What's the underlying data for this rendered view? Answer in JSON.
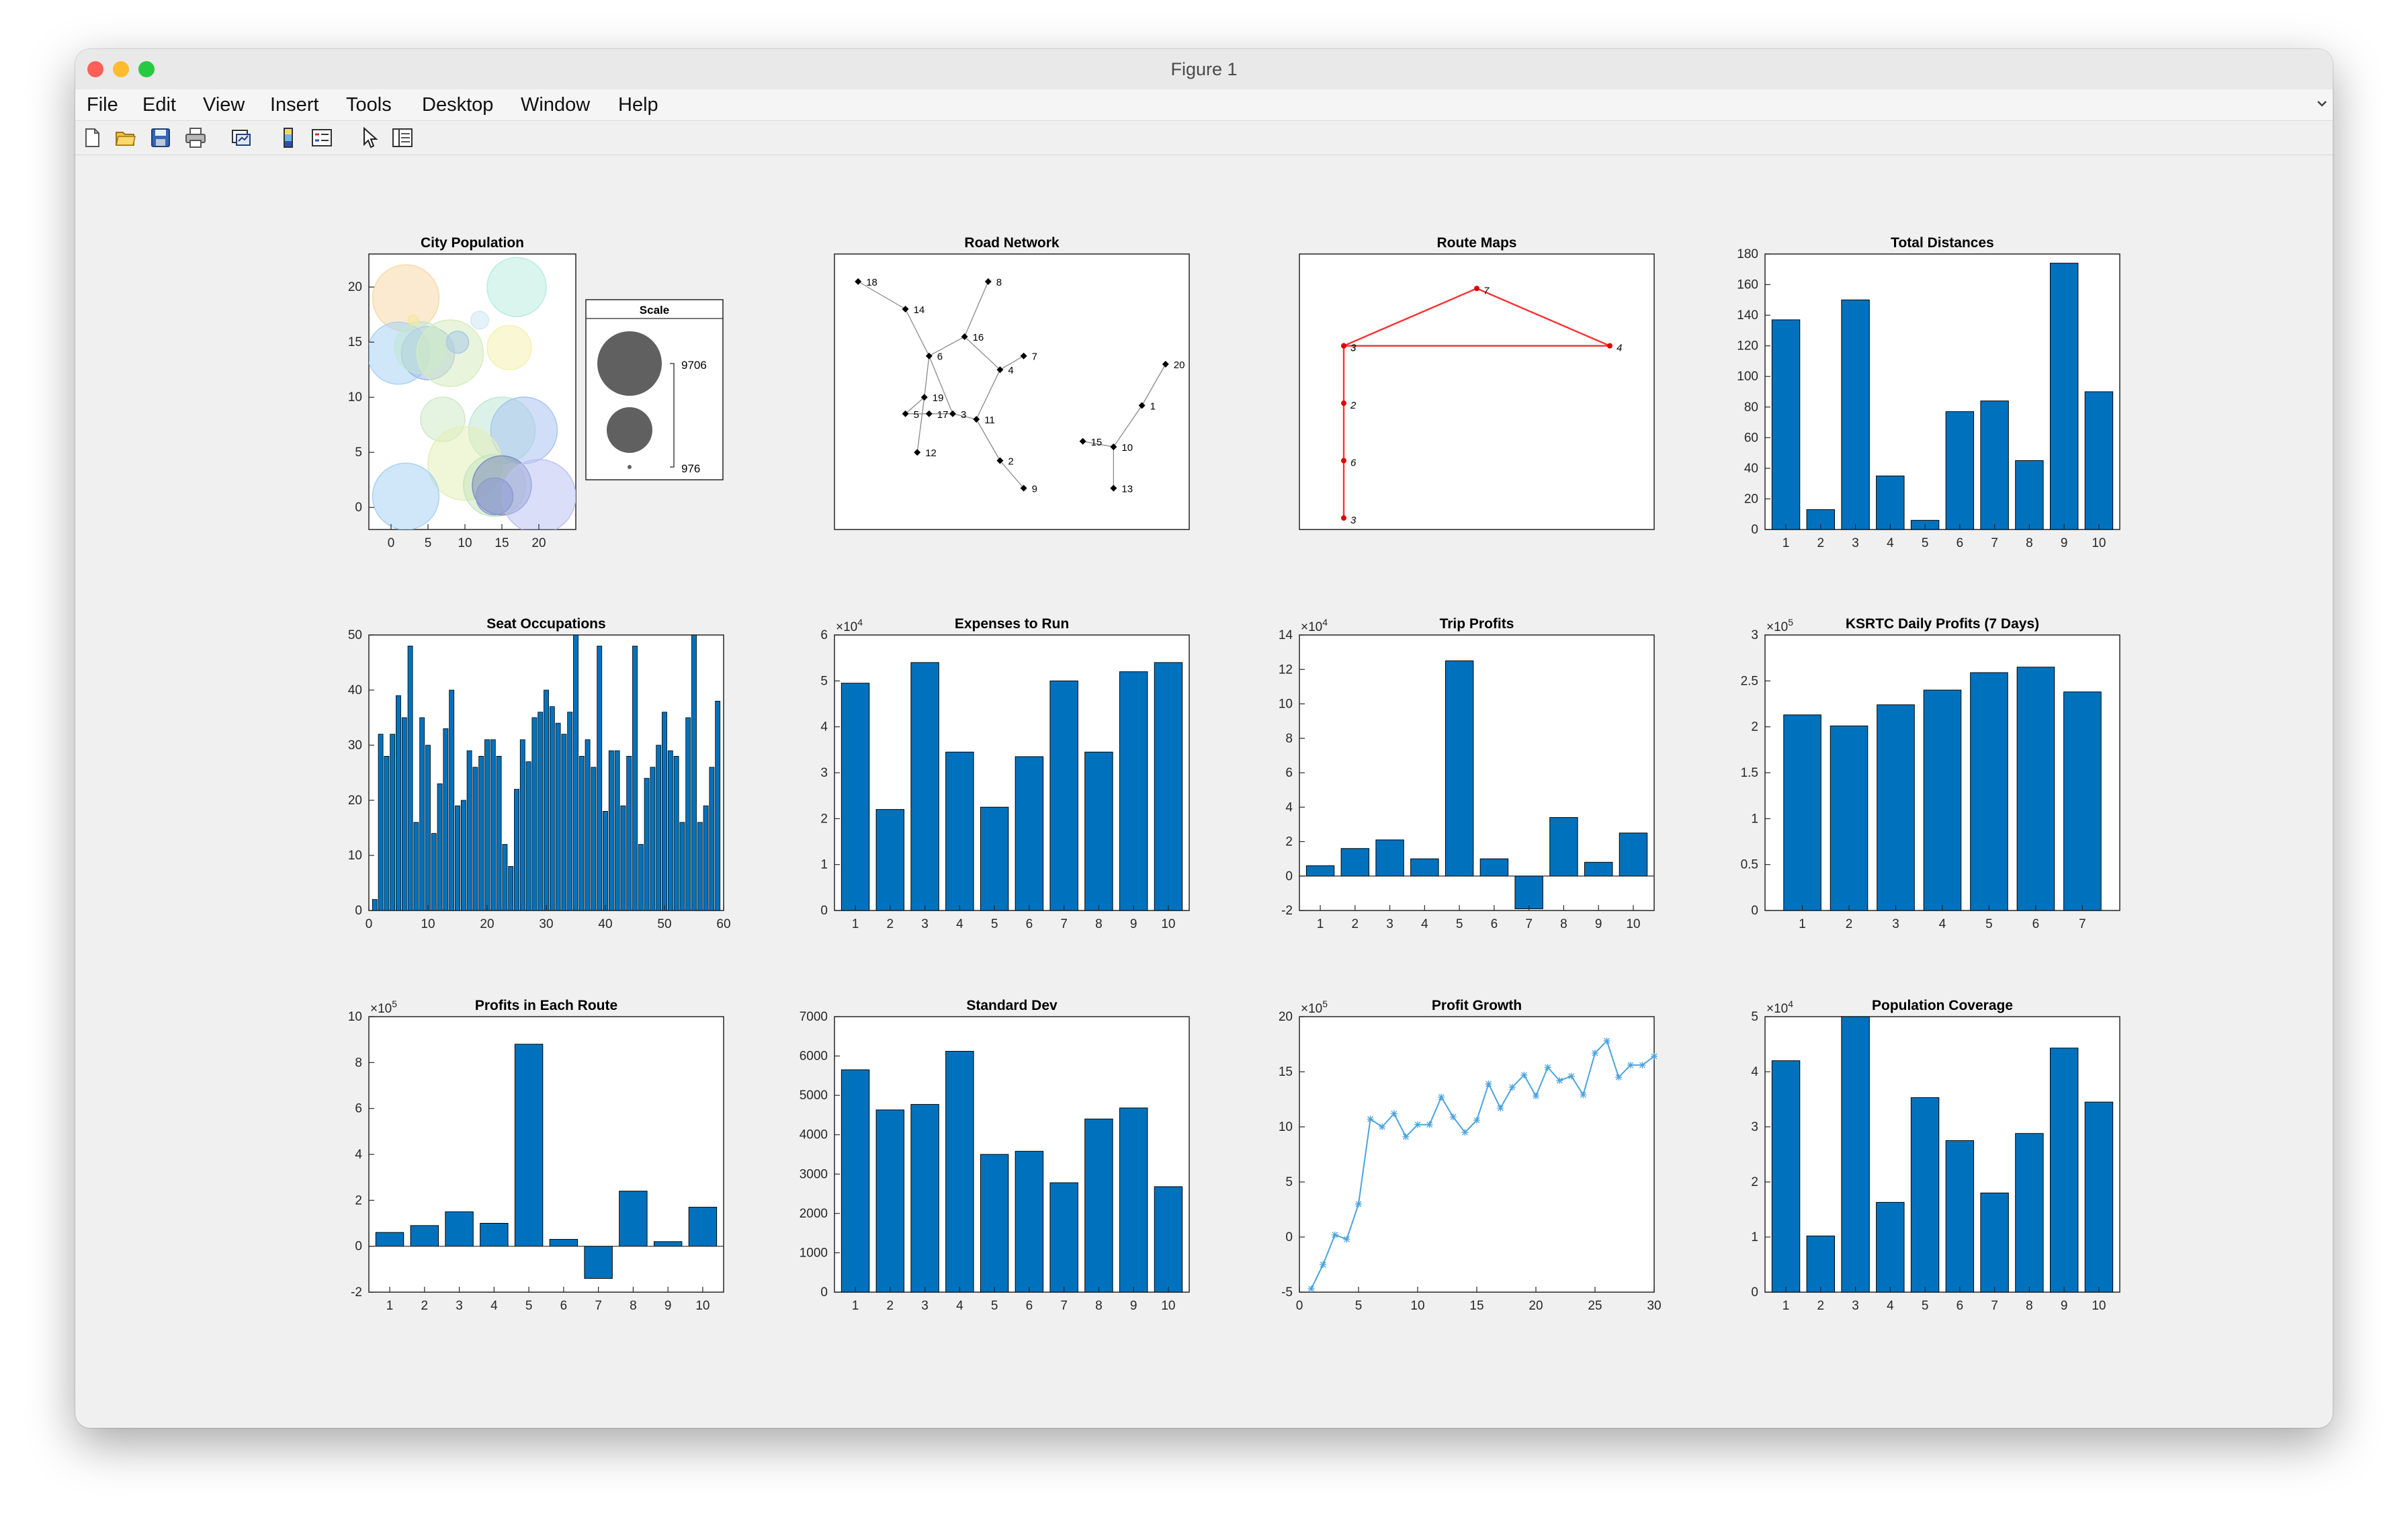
{
  "window": {
    "title": "Figure 1"
  },
  "menu": [
    "File",
    "Edit",
    "View",
    "Insert",
    "Tools",
    "Desktop",
    "Window",
    "Help"
  ],
  "toolbar_icons": [
    "new-figure-icon",
    "open-file-icon",
    "save-icon",
    "print-icon",
    "link-plot-icon",
    "insert-colorbar-icon",
    "insert-legend-icon",
    "edit-plot-pointer-icon",
    "property-inspector-icon"
  ],
  "chart_data": [
    {
      "type": "scatter",
      "title": "City Population",
      "xlim": [
        -3,
        25
      ],
      "ylim": [
        -2,
        23
      ],
      "xticks": [
        0,
        5,
        10,
        15,
        20
      ],
      "yticks": [
        0,
        5,
        10,
        15,
        20
      ],
      "bubbles": [
        [
          2,
          19,
          4.5,
          "#f7d9a8"
        ],
        [
          1,
          14,
          4.2,
          "#a9d2f4"
        ],
        [
          5,
          14,
          3.6,
          "#a2b7e8"
        ],
        [
          4,
          14.5,
          3.5,
          "#bfe8d6"
        ],
        [
          8,
          14,
          4.5,
          "#d6ecc0"
        ],
        [
          9,
          15,
          1.5,
          "#a9c9e6"
        ],
        [
          12,
          17,
          1.2,
          "#cfe8f2"
        ],
        [
          17,
          20,
          4,
          "#b9ecdf"
        ],
        [
          16,
          14.5,
          3,
          "#f4f1b0"
        ],
        [
          7,
          8,
          3,
          "#cfe9c8"
        ],
        [
          15,
          7,
          4.5,
          "#bfe6d6"
        ],
        [
          18,
          7,
          4.5,
          "#a9c5f0"
        ],
        [
          10,
          4,
          5,
          "#e4efb8"
        ],
        [
          14,
          2,
          4.2,
          "#c6e5c0"
        ],
        [
          15,
          2,
          4,
          "#7f8ebf"
        ],
        [
          2,
          1,
          4.5,
          "#a9d2f4"
        ],
        [
          20,
          1,
          5,
          "#bcc2f4"
        ],
        [
          14,
          1,
          2.5,
          "#8d9ad0"
        ],
        [
          3,
          17,
          0.7,
          "#f4e6a0"
        ]
      ],
      "legend": {
        "title": "Scale",
        "max": "9706",
        "min": "976"
      }
    },
    {
      "type": "scatter",
      "title": "Road Network",
      "nodes": [
        [
          "18",
          1,
          9
        ],
        [
          "14",
          3,
          8
        ],
        [
          "8",
          6.5,
          9
        ],
        [
          "16",
          5.5,
          7
        ],
        [
          "6",
          4,
          6.3
        ],
        [
          "7",
          8,
          6.3
        ],
        [
          "4",
          7,
          5.8
        ],
        [
          "19",
          3.8,
          4.8
        ],
        [
          "5",
          3,
          4.2
        ],
        [
          "17",
          4,
          4.2
        ],
        [
          "3",
          5,
          4.2
        ],
        [
          "11",
          6,
          4
        ],
        [
          "2",
          7,
          2.5
        ],
        [
          "9",
          8,
          1.5
        ],
        [
          "12",
          3.5,
          2.8
        ],
        [
          "20",
          14,
          6
        ],
        [
          "1",
          13,
          4.5
        ],
        [
          "15",
          10.5,
          3.2
        ],
        [
          "10",
          11.8,
          3
        ],
        [
          "13",
          11.8,
          1.5
        ]
      ],
      "edges": [
        [
          "18",
          "14"
        ],
        [
          "14",
          "6"
        ],
        [
          "8",
          "16"
        ],
        [
          "16",
          "6"
        ],
        [
          "16",
          "4"
        ],
        [
          "7",
          "4"
        ],
        [
          "6",
          "19"
        ],
        [
          "19",
          "5"
        ],
        [
          "5",
          "17"
        ],
        [
          "17",
          "3"
        ],
        [
          "3",
          "11"
        ],
        [
          "11",
          "4"
        ],
        [
          "11",
          "2"
        ],
        [
          "2",
          "9"
        ],
        [
          "19",
          "12"
        ],
        [
          "20",
          "1"
        ],
        [
          "1",
          "10"
        ],
        [
          "15",
          "10"
        ],
        [
          "10",
          "13"
        ],
        [
          "6",
          "3"
        ]
      ]
    },
    {
      "type": "line",
      "title": "Route Maps",
      "points": [
        [
          "3",
          1,
          7.5
        ],
        [
          "7",
          4,
          10
        ],
        [
          "4",
          7,
          7.5
        ],
        [
          "3",
          1,
          7.5
        ],
        [
          "2",
          1,
          5
        ],
        [
          "6",
          1,
          2.5
        ],
        [
          "3",
          1,
          0
        ]
      ],
      "color": "#ff3030"
    },
    {
      "type": "bar",
      "title": "Total Distances",
      "categories": [
        "1",
        "2",
        "3",
        "4",
        "5",
        "6",
        "7",
        "8",
        "9",
        "10"
      ],
      "values": [
        137,
        13,
        150,
        35,
        6,
        77,
        84,
        45,
        174,
        90
      ],
      "ylim": [
        0,
        180
      ],
      "yticks": [
        0,
        20,
        40,
        60,
        80,
        100,
        120,
        140,
        160,
        180
      ]
    },
    {
      "type": "bar",
      "title": "Seat Occupations",
      "values": [
        2,
        32,
        28,
        32,
        39,
        35,
        48,
        16,
        35,
        30,
        14,
        23,
        33,
        40,
        19,
        20,
        29,
        26,
        28,
        31,
        31,
        28,
        12,
        8,
        22,
        31,
        27,
        35,
        36,
        40,
        37,
        34,
        32,
        36,
        50,
        28,
        31,
        26,
        48,
        18,
        29,
        29,
        19,
        28,
        48,
        12,
        24,
        26,
        30,
        36,
        29,
        28,
        16,
        35,
        50,
        16,
        19,
        26,
        38
      ],
      "xlim": [
        0,
        60
      ],
      "ylim": [
        0,
        50
      ],
      "xticks": [
        0,
        10,
        20,
        30,
        40,
        50,
        60
      ],
      "yticks": [
        0,
        10,
        20,
        30,
        40,
        50
      ]
    },
    {
      "type": "bar",
      "title": "Expenses to Run",
      "categories": [
        "1",
        "2",
        "3",
        "4",
        "5",
        "6",
        "7",
        "8",
        "9",
        "10"
      ],
      "values": [
        49500,
        22000,
        54000,
        34500,
        22500,
        33500,
        50000,
        34500,
        52000,
        54000
      ],
      "ylim": [
        0,
        60000
      ],
      "yticks": [
        "0",
        "1",
        "2",
        "3",
        "4",
        "5",
        "6"
      ],
      "exponent": "4"
    },
    {
      "type": "bar",
      "title": "Trip Profits",
      "categories": [
        "1",
        "2",
        "3",
        "4",
        "5",
        "6",
        "7",
        "8",
        "9",
        "10"
      ],
      "values": [
        6000,
        16000,
        21000,
        10000,
        125000,
        10000,
        -19000,
        34000,
        8000,
        25000
      ],
      "ylim": [
        -20000,
        140000
      ],
      "yticks": [
        "-2",
        "0",
        "2",
        "4",
        "6",
        "8",
        "10",
        "12",
        "14"
      ],
      "exponent": "4"
    },
    {
      "type": "bar",
      "title": "KSRTC Daily Profits (7 Days)",
      "categories": [
        "1",
        "2",
        "3",
        "4",
        "5",
        "6",
        "7"
      ],
      "values": [
        213000,
        201000,
        224000,
        240000,
        259000,
        265000,
        238000
      ],
      "ylim": [
        0,
        300000
      ],
      "yticks": [
        "0",
        "0.5",
        "1",
        "1.5",
        "2",
        "2.5",
        "3"
      ],
      "exponent": "5"
    },
    {
      "type": "bar",
      "title": "Profits in Each Route",
      "categories": [
        "1",
        "2",
        "3",
        "4",
        "5",
        "6",
        "7",
        "8",
        "9",
        "10"
      ],
      "values": [
        60000,
        90000,
        150000,
        100000,
        880000,
        30000,
        -140000,
        240000,
        20000,
        170000
      ],
      "ylim": [
        -200000,
        1000000
      ],
      "yticks": [
        "-2",
        "0",
        "2",
        "4",
        "6",
        "8",
        "10"
      ],
      "exponent": "5"
    },
    {
      "type": "bar",
      "title": "Standard Dev",
      "categories": [
        "1",
        "2",
        "3",
        "4",
        "5",
        "6",
        "7",
        "8",
        "9",
        "10"
      ],
      "values": [
        5650,
        4630,
        4770,
        6120,
        3500,
        3580,
        2780,
        4400,
        4680,
        2680
      ],
      "ylim": [
        0,
        7000
      ],
      "yticks": [
        "0",
        "1000",
        "2000",
        "3000",
        "4000",
        "5000",
        "6000",
        "7000"
      ]
    },
    {
      "type": "line",
      "title": "Profit Growth",
      "x": [
        1,
        2,
        3,
        4,
        5,
        6,
        7,
        8,
        9,
        10,
        11,
        12,
        13,
        14,
        15,
        16,
        17,
        18,
        19,
        20,
        21,
        22,
        23,
        24,
        25,
        26,
        27,
        28,
        29,
        30
      ],
      "y": [
        -470000,
        -250000,
        20000,
        -20000,
        300000,
        1070000,
        1000000,
        1120000,
        910000,
        1020000,
        1020000,
        1270000,
        1090000,
        950000,
        1060000,
        1390000,
        1170000,
        1360000,
        1470000,
        1280000,
        1540000,
        1420000,
        1460000,
        1290000,
        1670000,
        1780000,
        1450000,
        1560000,
        1560000,
        1640000
      ],
      "xlim": [
        0,
        30
      ],
      "ylim": [
        -500000,
        2000000
      ],
      "xticks": [
        "0",
        "5",
        "10",
        "15",
        "20",
        "25",
        "30"
      ],
      "yticks": [
        "-5",
        "0",
        "5",
        "10",
        "15",
        "20"
      ],
      "exponent": "5"
    },
    {
      "type": "bar",
      "title": "Population Coverage",
      "categories": [
        "1",
        "2",
        "3",
        "4",
        "5",
        "6",
        "7",
        "8",
        "9",
        "10"
      ],
      "values": [
        42000,
        10200,
        50000,
        16300,
        35300,
        27500,
        18000,
        28800,
        44300,
        34500
      ],
      "ylim": [
        0,
        50000
      ],
      "yticks": [
        "0",
        "1",
        "2",
        "3",
        "4",
        "5"
      ],
      "exponent": "4"
    }
  ]
}
